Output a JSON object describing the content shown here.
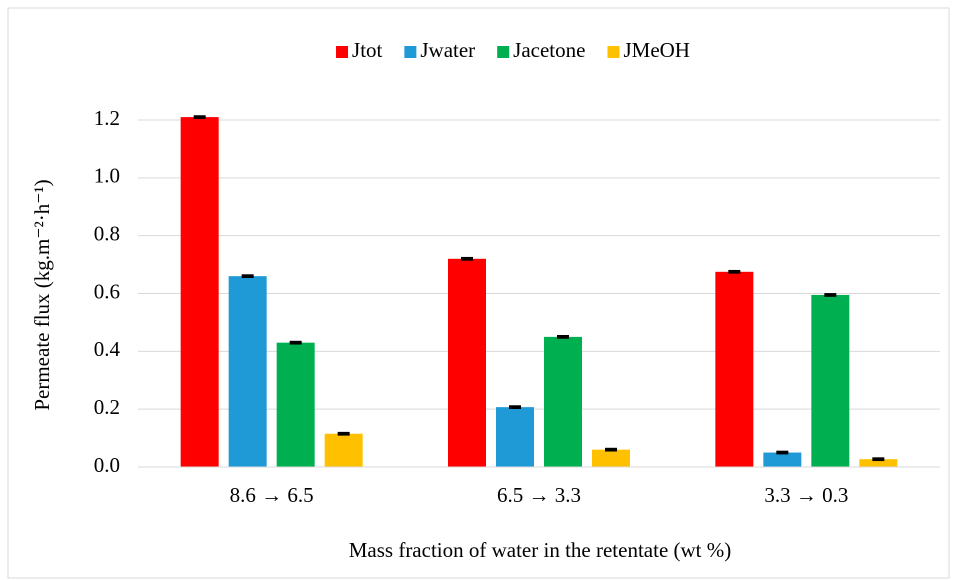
{
  "chart_data": {
    "type": "bar",
    "x_label": "Mass fraction of water in the retentate (wt %)",
    "y_label": "Permeate flux (kg.m⁻²·h⁻¹)",
    "categories": [
      "8.6 → 6.5",
      "6.5 → 3.3",
      "3.3 → 0.3"
    ],
    "series": [
      {
        "name": "Jtot",
        "color": "#ff0000",
        "values": [
          1.21,
          0.72,
          0.675
        ],
        "errors": [
          0.003,
          0.003,
          0.003
        ]
      },
      {
        "name": "Jwater",
        "color": "#1f9ad6",
        "values": [
          0.66,
          0.207,
          0.05
        ],
        "errors": [
          0.003,
          0.003,
          0.003
        ]
      },
      {
        "name": "Jacetone",
        "color": "#00b050",
        "values": [
          0.43,
          0.45,
          0.595
        ],
        "errors": [
          0.003,
          0.003,
          0.003
        ]
      },
      {
        "name": "JMeOH",
        "color": "#ffc000",
        "values": [
          0.115,
          0.06,
          0.027
        ],
        "errors": [
          0.003,
          0.003,
          0.003
        ]
      }
    ],
    "ylim": [
      0,
      1.2
    ],
    "yticks": [
      {
        "value": 0,
        "label": "0.0"
      },
      0.2,
      0.4,
      0.6,
      0.8,
      {
        "value": 1,
        "label": "1.0"
      },
      1.2
    ],
    "grid": true,
    "legend": "top",
    "error_bar_color": "#000000"
  }
}
